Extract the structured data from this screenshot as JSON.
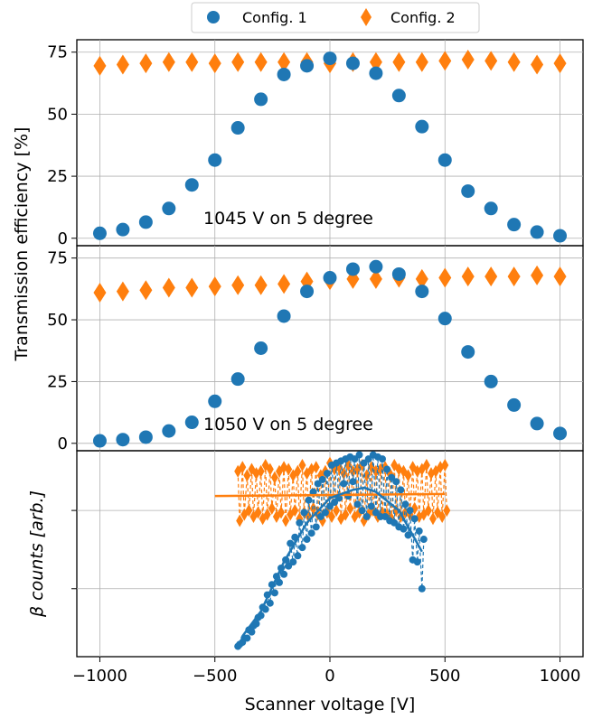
{
  "colors": {
    "config1": "#1f77b4",
    "config2": "#ff7f0e",
    "grid": "#b0b0b0"
  },
  "legend": {
    "placement": "top-center",
    "entries": [
      "Config. 1",
      "Config. 2"
    ]
  },
  "shared_x": {
    "xlabel": "Scanner voltage [V]",
    "xlim": [
      -1100,
      1100
    ],
    "ticks": [
      -1000,
      -500,
      0,
      500,
      1000
    ],
    "tick_labels": [
      "−1000",
      "−500",
      "0",
      "500",
      "1000"
    ]
  },
  "shared_ylabel": "Transmission efficiency [%]",
  "chart_data": [
    {
      "type": "scatter",
      "annotation": "1045 V on 5 degree",
      "ylim": [
        -3,
        80
      ],
      "yticks": [
        0,
        25,
        50,
        75
      ],
      "grid": true,
      "series": [
        {
          "name": "Config. 1",
          "marker": "circle",
          "x": [
            -1000,
            -900,
            -800,
            -700,
            -600,
            -500,
            -400,
            -300,
            -200,
            -100,
            0,
            100,
            200,
            300,
            400,
            500,
            600,
            700,
            800,
            900,
            1000
          ],
          "y": [
            2,
            3.5,
            6.5,
            12,
            21.5,
            31.5,
            44.5,
            56,
            66,
            69.5,
            72.5,
            70.5,
            66.5,
            57.5,
            45,
            31.5,
            19,
            12,
            5.5,
            2.5,
            1
          ]
        },
        {
          "name": "Config. 2",
          "marker": "diamond",
          "x": [
            -1000,
            -900,
            -800,
            -700,
            -600,
            -500,
            -400,
            -300,
            -200,
            -100,
            0,
            100,
            200,
            300,
            400,
            500,
            600,
            700,
            800,
            900,
            1000
          ],
          "y": [
            69.5,
            70,
            70.5,
            71,
            71,
            70.5,
            71,
            71,
            71,
            71,
            70.5,
            71,
            71,
            71,
            71,
            71.5,
            72,
            71.5,
            71,
            70,
            70.5
          ]
        }
      ]
    },
    {
      "type": "scatter",
      "annotation": "1050 V on 5 degree",
      "ylim": [
        -3,
        80
      ],
      "yticks": [
        0,
        25,
        50,
        75
      ],
      "grid": true,
      "series": [
        {
          "name": "Config. 1",
          "marker": "circle",
          "x": [
            -1000,
            -900,
            -800,
            -700,
            -600,
            -500,
            -400,
            -300,
            -200,
            -100,
            0,
            100,
            200,
            300,
            400,
            500,
            600,
            700,
            800,
            900,
            1000
          ],
          "y": [
            1,
            1.5,
            2.5,
            5,
            8.5,
            17,
            26,
            38.5,
            51.5,
            61.5,
            67,
            70.5,
            71.5,
            68.5,
            61.5,
            50.5,
            37,
            25,
            15.5,
            8,
            4
          ]
        },
        {
          "name": "Config. 2",
          "marker": "diamond",
          "x": [
            -1000,
            -900,
            -800,
            -700,
            -600,
            -500,
            -400,
            -300,
            -200,
            -100,
            0,
            100,
            200,
            300,
            400,
            500,
            600,
            700,
            800,
            900,
            1000
          ],
          "y": [
            61,
            61.5,
            62,
            63,
            63,
            63.5,
            64,
            64,
            64.5,
            65.5,
            66,
            66.5,
            66.5,
            67,
            66.5,
            67,
            67.5,
            67.5,
            67.5,
            68,
            67.5
          ]
        }
      ]
    },
    {
      "type": "scatter",
      "ylabel": "β counts [arb.]",
      "ylim": [
        0,
        10
      ],
      "grid": true,
      "series": [
        {
          "name": "Config. 1",
          "marker": "circle",
          "linestyle": "dashed",
          "x": [
            -400,
            -380,
            -360,
            -340,
            -320,
            -300,
            -280,
            -260,
            -240,
            -220,
            -200,
            -180,
            -160,
            -140,
            -120,
            -100,
            -80,
            -60,
            -40,
            -20,
            0,
            20,
            40,
            60,
            80,
            100,
            120,
            140,
            160,
            180,
            200,
            220,
            240,
            260,
            280,
            300,
            320,
            340,
            360,
            380,
            400
          ],
          "y_upper": [
            0.6,
            0.9,
            1.3,
            1.5,
            1.9,
            2.4,
            3.0,
            3.5,
            3.9,
            4.3,
            4.7,
            5.5,
            5.8,
            6.5,
            7.0,
            7.6,
            8.0,
            8.4,
            8.6,
            8.9,
            9.3,
            9.4,
            9.5,
            9.6,
            9.7,
            9.6,
            9.8,
            9.4,
            9.6,
            9.8,
            9.7,
            9.6,
            9.1,
            8.7,
            8.5,
            8.1,
            7.4,
            7.1,
            6.7,
            6.1,
            5.7
          ],
          "y_lower": [
            0.5,
            0.7,
            0.9,
            1.2,
            1.6,
            2.0,
            2.3,
            2.6,
            3.1,
            3.6,
            4.0,
            4.4,
            4.6,
            4.9,
            5.3,
            5.7,
            6.0,
            6.3,
            6.8,
            7.0,
            7.3,
            7.5,
            7.7,
            8.4,
            7.8,
            8.5,
            7.4,
            7.1,
            6.8,
            7.3,
            7.0,
            6.8,
            6.8,
            6.6,
            6.5,
            6.3,
            6.2,
            5.9,
            4.7,
            4.6,
            3.3
          ]
        },
        {
          "name": "Config. 1 fit",
          "type": "line",
          "x": [
            -380,
            -300,
            -200,
            -100,
            0,
            100,
            150,
            200,
            300,
            400
          ],
          "y": [
            1.0,
            2.2,
            4.6,
            6.5,
            7.7,
            8.1,
            8.2,
            8.0,
            7.1,
            5.1
          ]
        },
        {
          "name": "Config. 2",
          "marker": "diamond",
          "linestyle": "dashed",
          "x": [
            -400,
            -380,
            -360,
            -340,
            -320,
            -300,
            -280,
            -260,
            -240,
            -220,
            -200,
            -180,
            -160,
            -140,
            -120,
            -100,
            -80,
            -60,
            -40,
            -20,
            0,
            20,
            40,
            60,
            80,
            100,
            120,
            140,
            160,
            180,
            200,
            220,
            240,
            260,
            280,
            300,
            320,
            340,
            360,
            380,
            400,
            420,
            440,
            460,
            480,
            500
          ],
          "y_upper": [
            9.0,
            9.2,
            8.8,
            9.1,
            8.9,
            9.0,
            9.3,
            9.1,
            8.7,
            9.0,
            9.2,
            9.1,
            8.8,
            9.0,
            9.3,
            8.9,
            9.1,
            9.2,
            8.8,
            9.0,
            9.4,
            9.1,
            9.2,
            8.9,
            9.3,
            9.0,
            9.1,
            9.3,
            8.8,
            9.2,
            9.0,
            9.1,
            9.2,
            8.9,
            9.3,
            9.1,
            9.0,
            8.8,
            9.2,
            9.0,
            9.1,
            9.3,
            8.9,
            9.0,
            9.2,
            9.3
          ],
          "y_lower": [
            6.6,
            6.9,
            7.1,
            6.8,
            7.0,
            6.7,
            6.9,
            7.2,
            6.8,
            7.0,
            6.6,
            6.9,
            7.1,
            6.7,
            7.0,
            6.8,
            7.2,
            6.9,
            6.6,
            7.0,
            6.8,
            7.1,
            6.7,
            6.9,
            7.2,
            6.8,
            7.0,
            6.6,
            6.9,
            7.1,
            6.8,
            7.0,
            6.9,
            6.7,
            7.1,
            6.8,
            7.0,
            6.9,
            7.2,
            6.8,
            6.9,
            7.1,
            6.7,
            7.0,
            6.8,
            7.1
          ]
        },
        {
          "name": "Config. 2 fit",
          "type": "line",
          "x": [
            -500,
            500
          ],
          "y": [
            7.8,
            7.9
          ]
        }
      ]
    }
  ]
}
